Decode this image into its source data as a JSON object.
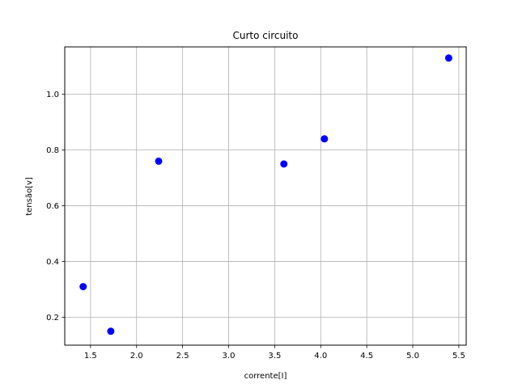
{
  "chart_data": {
    "type": "scatter",
    "title": "Curto circuito",
    "xlabel": "corrente[I]",
    "ylabel": "tensão[v]",
    "xlim": [
      1.22,
      5.58
    ],
    "ylim": [
      0.1,
      1.17
    ],
    "xticks": [
      1.5,
      2.0,
      2.5,
      3.0,
      3.5,
      4.0,
      4.5,
      5.0,
      5.5
    ],
    "yticks": [
      0.2,
      0.4,
      0.6,
      0.8,
      1.0
    ],
    "xtick_labels": [
      "1.5",
      "2.0",
      "2.5",
      "3.0",
      "3.5",
      "4.0",
      "4.5",
      "5.0",
      "5.5"
    ],
    "ytick_labels": [
      "0.2",
      "0.4",
      "0.6",
      "0.8",
      "1.0"
    ],
    "grid": true,
    "series": [
      {
        "color": "#0000ff",
        "marker": "circle",
        "x": [
          1.42,
          1.72,
          2.24,
          3.6,
          4.04,
          5.39
        ],
        "y": [
          0.31,
          0.15,
          0.76,
          0.75,
          0.84,
          1.13
        ]
      }
    ]
  }
}
